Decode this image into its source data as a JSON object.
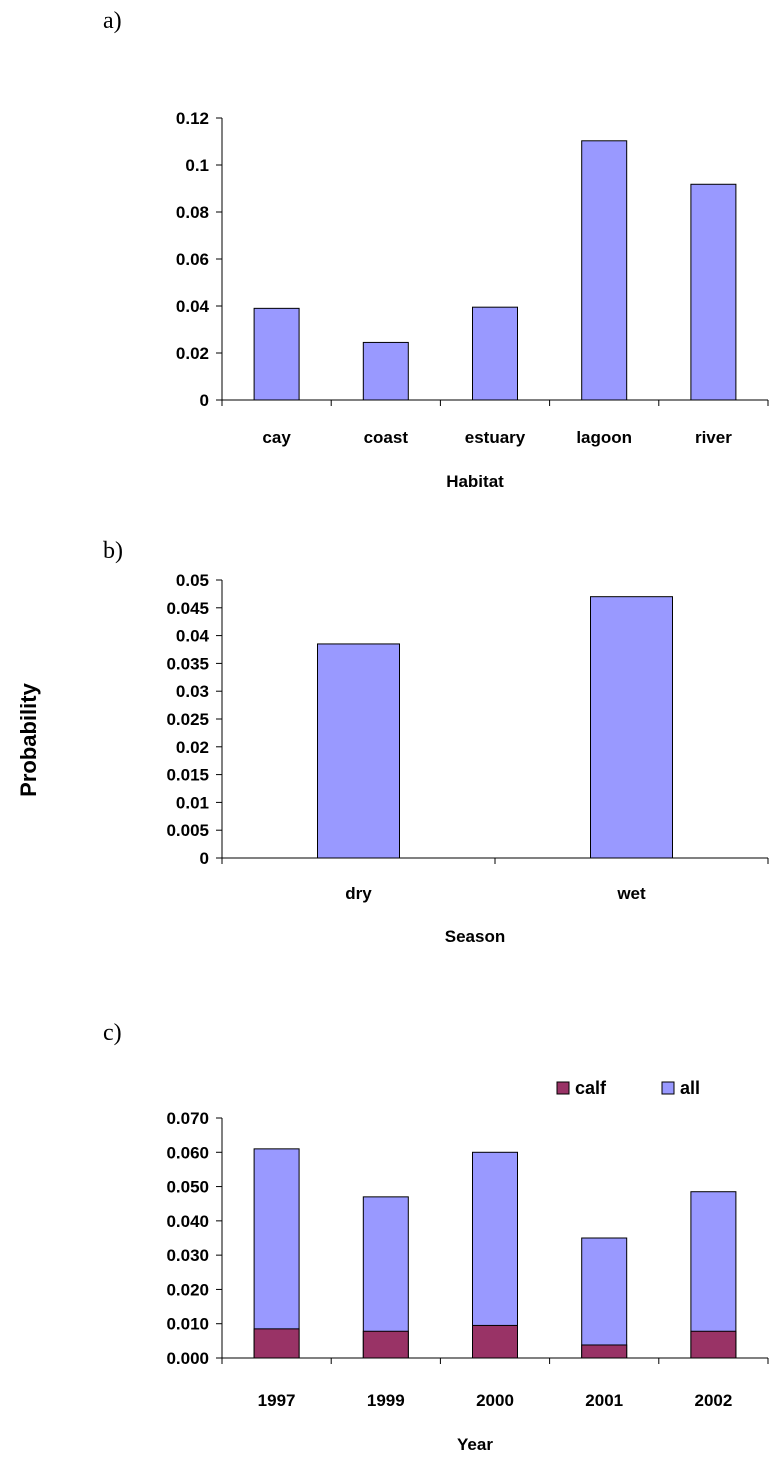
{
  "y_title": "Probability",
  "colors": {
    "all": "#9999ff",
    "calf": "#993366",
    "stroke": "#000000"
  },
  "chart_data": [
    {
      "panel": "a)",
      "type": "bar",
      "xlabel": "Habitat",
      "categories": [
        "cay",
        "coast",
        "estuary",
        "lagoon",
        "river"
      ],
      "values": [
        0.039,
        0.0245,
        0.0395,
        0.1103,
        0.0918
      ],
      "ylim": [
        0,
        0.12
      ],
      "yticks": [
        "0",
        "0.02",
        "0.04",
        "0.06",
        "0.08",
        "0.1",
        "0.12"
      ]
    },
    {
      "panel": "b)",
      "type": "bar",
      "xlabel": "Season",
      "categories": [
        "dry",
        "wet"
      ],
      "values": [
        0.0385,
        0.047
      ],
      "ylim": [
        0,
        0.05
      ],
      "yticks": [
        "0",
        "0.005",
        "0.01",
        "0.015",
        "0.02",
        "0.025",
        "0.03",
        "0.035",
        "0.04",
        "0.045",
        "0.05"
      ]
    },
    {
      "panel": "c)",
      "type": "bar",
      "stacked": true,
      "xlabel": "Year",
      "categories": [
        "1997",
        "1999",
        "2000",
        "2001",
        "2002"
      ],
      "series": [
        {
          "name": "calf",
          "values": [
            0.0085,
            0.0078,
            0.0095,
            0.0038,
            0.0078
          ]
        },
        {
          "name": "all",
          "values": [
            0.061,
            0.047,
            0.06,
            0.035,
            0.0485
          ]
        }
      ],
      "ylim": [
        0,
        0.07
      ],
      "yticks": [
        "0.000",
        "0.010",
        "0.020",
        "0.030",
        "0.040",
        "0.050",
        "0.060",
        "0.070"
      ],
      "legend": "top-right"
    }
  ]
}
